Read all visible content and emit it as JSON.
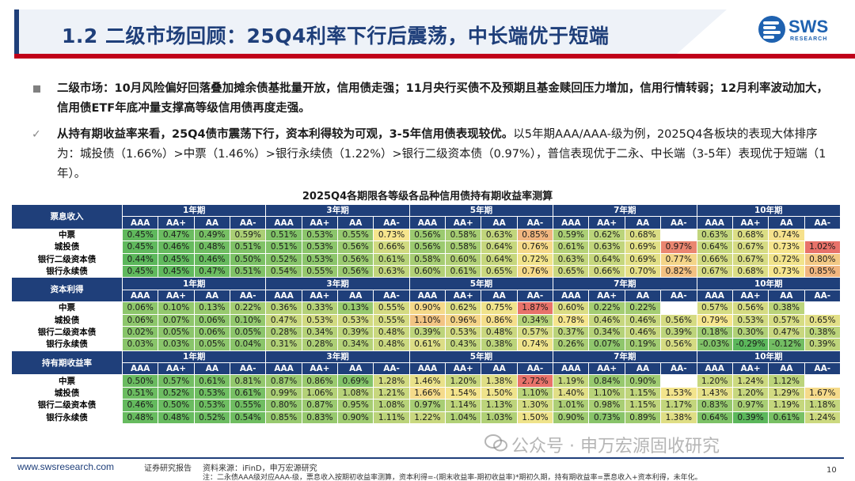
{
  "header": {
    "title": "1.2 二级市场回顾：25Q4利率下行后震荡，中长端优于短端",
    "logo_text": "SWS",
    "logo_sub": "RESEARCH"
  },
  "bullets": {
    "b1": "二级市场：10月风险偏好回落叠加摊余债基批量开放，信用债走强；11月央行买债不及预期且基金赎回压力增加，信用行情转弱；12月利率波动加大，信用债ETF年底冲量支撑高等级信用债再度走强。",
    "b2_bold": "从持有期收益率来看，25Q4债市震荡下行，资本利得较为可观，3-5年信用债表现较优。",
    "b2_rest": "以5年期AAA/AAA-级为例，2025Q4各板块的表现大体排序为：城投债（1.66%）>中票（1.46%）>银行永续债（1.22%）>银行二级资本债（0.97%），普信表现优于二永、中长端（3-5年）表现优于短端（1年）。"
  },
  "table": {
    "title": "2025Q4各期限各等级各品种信用债持有期收益率测算",
    "periods": [
      "1年期",
      "3年期",
      "5年期",
      "7年期",
      "10年期"
    ],
    "ratings": [
      "AAA",
      "AA+",
      "AA",
      "AA-"
    ],
    "sections": [
      {
        "label": "票息收入",
        "rows": [
          {
            "name": "中票",
            "values": [
              "0.45%",
              "0.47%",
              "0.49%",
              "0.59%",
              "0.51%",
              "0.53%",
              "0.55%",
              "0.73%",
              "0.56%",
              "0.58%",
              "0.63%",
              "0.85%",
              "0.59%",
              "0.62%",
              "0.68%",
              "",
              "0.63%",
              "0.68%",
              "0.74%",
              ""
            ]
          },
          {
            "name": "城投债",
            "values": [
              "0.45%",
              "0.46%",
              "0.48%",
              "0.51%",
              "0.51%",
              "0.53%",
              "0.56%",
              "0.66%",
              "0.56%",
              "0.58%",
              "0.64%",
              "0.76%",
              "0.61%",
              "0.63%",
              "0.69%",
              "0.97%",
              "0.64%",
              "0.67%",
              "0.73%",
              "1.02%"
            ]
          },
          {
            "name": "银行二级资本债",
            "values": [
              "0.44%",
              "0.45%",
              "0.46%",
              "0.50%",
              "0.52%",
              "0.53%",
              "0.56%",
              "0.61%",
              "0.58%",
              "0.60%",
              "0.64%",
              "0.72%",
              "0.63%",
              "0.64%",
              "0.69%",
              "0.77%",
              "0.66%",
              "0.67%",
              "0.72%",
              "0.80%"
            ]
          },
          {
            "name": "银行永续债",
            "values": [
              "0.45%",
              "0.45%",
              "0.47%",
              "0.51%",
              "0.54%",
              "0.55%",
              "0.56%",
              "0.63%",
              "0.60%",
              "0.61%",
              "0.65%",
              "0.76%",
              "0.65%",
              "0.66%",
              "0.70%",
              "0.82%",
              "0.67%",
              "0.68%",
              "0.73%",
              "0.85%"
            ]
          }
        ]
      },
      {
        "label": "资本利得",
        "rows": [
          {
            "name": "中票",
            "values": [
              "0.06%",
              "0.10%",
              "0.13%",
              "0.22%",
              "0.36%",
              "0.33%",
              "0.13%",
              "0.55%",
              "0.90%",
              "0.62%",
              "0.75%",
              "1.87%",
              "0.60%",
              "0.22%",
              "0.22%",
              "",
              "0.57%",
              "0.56%",
              "0.38%",
              ""
            ]
          },
          {
            "name": "城投债",
            "values": [
              "0.06%",
              "0.07%",
              "0.06%",
              "0.10%",
              "0.47%",
              "0.53%",
              "0.53%",
              "0.55%",
              "1.10%",
              "0.96%",
              "0.86%",
              "0.34%",
              "0.78%",
              "0.46%",
              "0.46%",
              "0.56%",
              "0.79%",
              "0.53%",
              "0.57%",
              "0.65%"
            ]
          },
          {
            "name": "银行二级资本债",
            "values": [
              "0.02%",
              "0.05%",
              "0.06%",
              "0.05%",
              "0.28%",
              "0.34%",
              "0.39%",
              "0.48%",
              "0.39%",
              "0.53%",
              "0.48%",
              "0.57%",
              "0.37%",
              "0.34%",
              "0.46%",
              "0.39%",
              "0.18%",
              "0.30%",
              "0.47%",
              "0.38%"
            ]
          },
          {
            "name": "银行永续债",
            "values": [
              "0.03%",
              "0.03%",
              "0.05%",
              "0.04%",
              "0.31%",
              "0.28%",
              "0.34%",
              "0.48%",
              "0.61%",
              "0.43%",
              "0.38%",
              "0.74%",
              "0.26%",
              "0.07%",
              "0.19%",
              "0.56%",
              "-0.03%",
              "-0.29%",
              "-0.12%",
              "0.39%"
            ]
          }
        ]
      },
      {
        "label": "持有期收益率",
        "rows": [
          {
            "name": "中票",
            "values": [
              "0.50%",
              "0.57%",
              "0.61%",
              "0.81%",
              "0.87%",
              "0.86%",
              "0.69%",
              "1.28%",
              "1.46%",
              "1.20%",
              "1.38%",
              "2.72%",
              "1.19%",
              "0.84%",
              "0.90%",
              "",
              "1.20%",
              "1.24%",
              "1.12%",
              ""
            ]
          },
          {
            "name": "城投债",
            "values": [
              "0.51%",
              "0.52%",
              "0.53%",
              "0.61%",
              "0.99%",
              "1.06%",
              "1.08%",
              "1.21%",
              "1.66%",
              "1.54%",
              "1.50%",
              "1.10%",
              "1.40%",
              "1.10%",
              "1.15%",
              "1.53%",
              "1.43%",
              "1.20%",
              "1.29%",
              "1.67%"
            ]
          },
          {
            "name": "银行二级资本债",
            "values": [
              "0.46%",
              "0.50%",
              "0.53%",
              "0.55%",
              "0.80%",
              "0.87%",
              "0.95%",
              "1.08%",
              "0.97%",
              "1.14%",
              "1.13%",
              "1.30%",
              "1.01%",
              "0.98%",
              "1.15%",
              "1.17%",
              "0.83%",
              "0.97%",
              "1.19%",
              "1.18%"
            ]
          },
          {
            "name": "银行永续债",
            "values": [
              "0.48%",
              "0.48%",
              "0.52%",
              "0.54%",
              "0.85%",
              "0.83%",
              "0.90%",
              "1.11%",
              "1.22%",
              "1.04%",
              "1.03%",
              "1.50%",
              "0.90%",
              "0.73%",
              "0.89%",
              "1.38%",
              "0.64%",
              "0.39%",
              "0.61%",
              "1.24%"
            ]
          }
        ]
      }
    ]
  },
  "colors": {
    "navy": "#1f3f7a",
    "low": "#5bb75b",
    "mid": "#f6e58d",
    "high": "#e8726a"
  },
  "footer": {
    "url": "www.swsresearch.com",
    "category": "证券研究报告",
    "source": "资料来源：iFinD，申万宏源研究",
    "note": "注：二永债AAA级对应AAA-级，票息收入按期初收益率测算，资本利得=-(期末收益率-期初收益率)*期初久期，持有期收益率=票息收入+资本利得，未年化。",
    "page": "10",
    "watermark": "公众号 · 申万宏源固收研究"
  }
}
